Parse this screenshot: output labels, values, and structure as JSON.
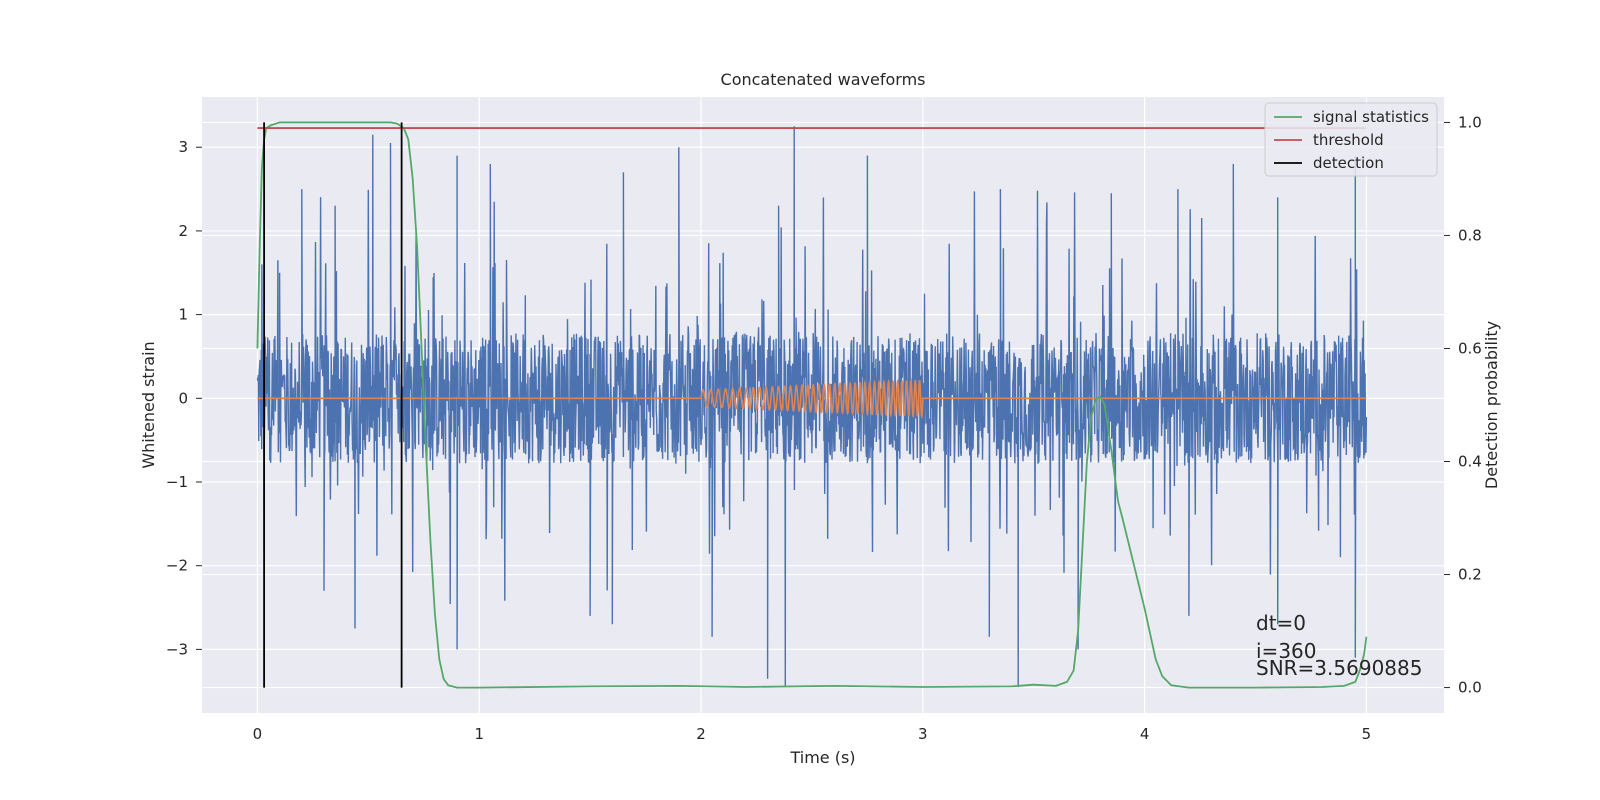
{
  "chart_data": {
    "type": "line",
    "title": "Concatenated waveforms",
    "xlabel": "Time (s)",
    "ylabel": "Whitened strain",
    "y2label": "Detection probability",
    "xlim": [
      -0.25,
      5.35
    ],
    "ylim": [
      -3.76,
      3.6
    ],
    "y2lim": [
      -0.045,
      1.045
    ],
    "xticks": [
      0,
      1,
      2,
      3,
      4,
      5
    ],
    "yticks": [
      -3,
      -2,
      -1,
      0,
      1,
      2,
      3
    ],
    "yticklabels": [
      "−3",
      "−2",
      "−1",
      "0",
      "1",
      "2",
      "3"
    ],
    "y2ticks": [
      0.0,
      0.2,
      0.4,
      0.6,
      0.8,
      1.0
    ],
    "y2ticklabels": [
      "0.0",
      "0.2",
      "0.4",
      "0.6",
      "0.8",
      "1.0"
    ],
    "grid": true,
    "legend_placement": "top-right",
    "series": [
      {
        "kind": "noise",
        "color": "#4c72b0",
        "x_range": [
          0,
          5
        ],
        "core_amplitude": 0.78,
        "max_peaks_top": [
          [
            0.02,
            1.6
          ],
          [
            0.1,
            1.5
          ],
          [
            0.2,
            2.5
          ],
          [
            0.35,
            2.3
          ],
          [
            0.52,
            3.15
          ],
          [
            0.6,
            3.05
          ],
          [
            0.9,
            2.9
          ],
          [
            1.05,
            2.8
          ],
          [
            1.65,
            2.7
          ],
          [
            1.9,
            3.0
          ],
          [
            2.35,
            2.3
          ],
          [
            2.42,
            3.25
          ],
          [
            2.75,
            2.9
          ],
          [
            3.35,
            2.5
          ],
          [
            3.85,
            2.45
          ],
          [
            4.15,
            2.5
          ],
          [
            4.4,
            2.8
          ],
          [
            4.6,
            2.4
          ],
          [
            4.95,
            2.9
          ]
        ],
        "max_peaks_bottom": [
          [
            0.03,
            -1.85
          ],
          [
            0.3,
            -2.3
          ],
          [
            0.44,
            -2.75
          ],
          [
            0.9,
            -3.0
          ],
          [
            1.5,
            -2.6
          ],
          [
            1.6,
            -2.7
          ],
          [
            2.05,
            -2.85
          ],
          [
            2.3,
            -3.35
          ],
          [
            2.38,
            -3.45
          ],
          [
            3.3,
            -2.85
          ],
          [
            3.43,
            -3.45
          ],
          [
            3.7,
            -3.0
          ],
          [
            4.2,
            -2.6
          ],
          [
            4.6,
            -2.7
          ],
          [
            4.95,
            -3.1
          ]
        ]
      },
      {
        "kind": "chirp",
        "color": "#dd8452",
        "t_start": 2.0,
        "t_end": 3.0,
        "amp_start": 0.1,
        "amp_end": 0.22,
        "flat_value": 0
      },
      {
        "name": "signal statistics",
        "color": "#55a868",
        "axis": "right",
        "x": [
          0.0,
          0.01,
          0.02,
          0.03,
          0.04,
          0.06,
          0.1,
          0.2,
          0.5,
          0.6,
          0.63,
          0.66,
          0.68,
          0.7,
          0.72,
          0.74,
          0.76,
          0.78,
          0.8,
          0.82,
          0.84,
          0.86,
          0.9,
          1.0,
          1.5,
          1.9,
          2.2,
          2.6,
          3.0,
          3.4,
          3.5,
          3.6,
          3.65,
          3.68,
          3.7,
          3.72,
          3.74,
          3.76,
          3.78,
          3.8,
          3.82,
          3.85,
          3.88,
          3.9,
          3.95,
          4.0,
          4.05,
          4.08,
          4.12,
          4.2,
          4.5,
          4.8,
          4.9,
          4.95,
          4.97,
          4.99,
          5.0
        ],
        "values": [
          0.6,
          0.78,
          0.92,
          0.97,
          0.99,
          0.995,
          1.0,
          1.0,
          1.0,
          1.0,
          0.998,
          0.99,
          0.97,
          0.9,
          0.78,
          0.6,
          0.42,
          0.26,
          0.13,
          0.05,
          0.015,
          0.004,
          0.0,
          0.0,
          0.002,
          0.003,
          0.001,
          0.003,
          0.001,
          0.002,
          0.005,
          0.003,
          0.01,
          0.03,
          0.1,
          0.25,
          0.4,
          0.48,
          0.51,
          0.515,
          0.5,
          0.42,
          0.33,
          0.3,
          0.22,
          0.14,
          0.05,
          0.02,
          0.004,
          0.0,
          0.0,
          0.001,
          0.003,
          0.01,
          0.03,
          0.06,
          0.09
        ]
      },
      {
        "name": "threshold",
        "color": "#c44e52",
        "axis": "right",
        "x": [
          0,
          5
        ],
        "values": [
          0.99,
          0.99
        ]
      },
      {
        "name": "detection",
        "color": "#000000",
        "axis": "right",
        "vlines": [
          0.03,
          0.65
        ],
        "y_range": [
          0.0,
          1.0
        ]
      }
    ],
    "annotations": [
      "dt=0",
      "i=360",
      "SNR=3.5690885"
    ]
  }
}
